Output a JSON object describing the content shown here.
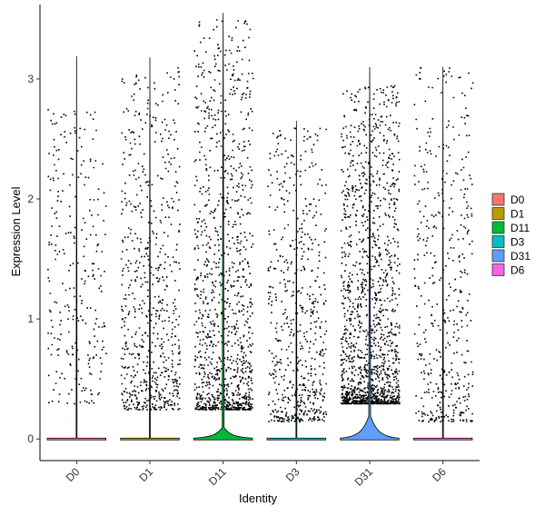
{
  "chart_data": {
    "type": "violin",
    "xlabel": "Identity",
    "ylabel": "Expression Level",
    "categories": [
      "D0",
      "D1",
      "D11",
      "D3",
      "D31",
      "D6"
    ],
    "ylim": [
      -0.18,
      3.62
    ],
    "yticks": [
      0,
      1,
      2,
      3
    ],
    "grid": false,
    "legend_position": "right",
    "series": [
      {
        "name": "D0",
        "color": "#F8766D",
        "max": 3.19,
        "point_density": 0.18,
        "point_min": 0.3,
        "point_max": 2.75,
        "violin_peak_width": 0.0
      },
      {
        "name": "D1",
        "color": "#B79F00",
        "max": 3.18,
        "point_density": 0.45,
        "point_min": 0.25,
        "point_max": 3.1,
        "violin_peak_width": 0.0
      },
      {
        "name": "D11",
        "color": "#00BA38",
        "max": 3.55,
        "point_density": 0.75,
        "point_min": 0.25,
        "point_max": 3.5,
        "violin_peak_width": 0.45
      },
      {
        "name": "D3",
        "color": "#00BFC4",
        "max": 2.65,
        "point_density": 0.4,
        "point_min": 0.15,
        "point_max": 2.6,
        "violin_peak_width": 0.0
      },
      {
        "name": "D31",
        "color": "#619CFF",
        "max": 3.1,
        "point_density": 1.0,
        "point_min": 0.3,
        "point_max": 2.95,
        "violin_peak_width": 0.9
      },
      {
        "name": "D6",
        "color": "#F564E3",
        "max": 3.1,
        "point_density": 0.3,
        "point_min": 0.15,
        "point_max": 3.1,
        "violin_peak_width": 0.0
      }
    ]
  }
}
